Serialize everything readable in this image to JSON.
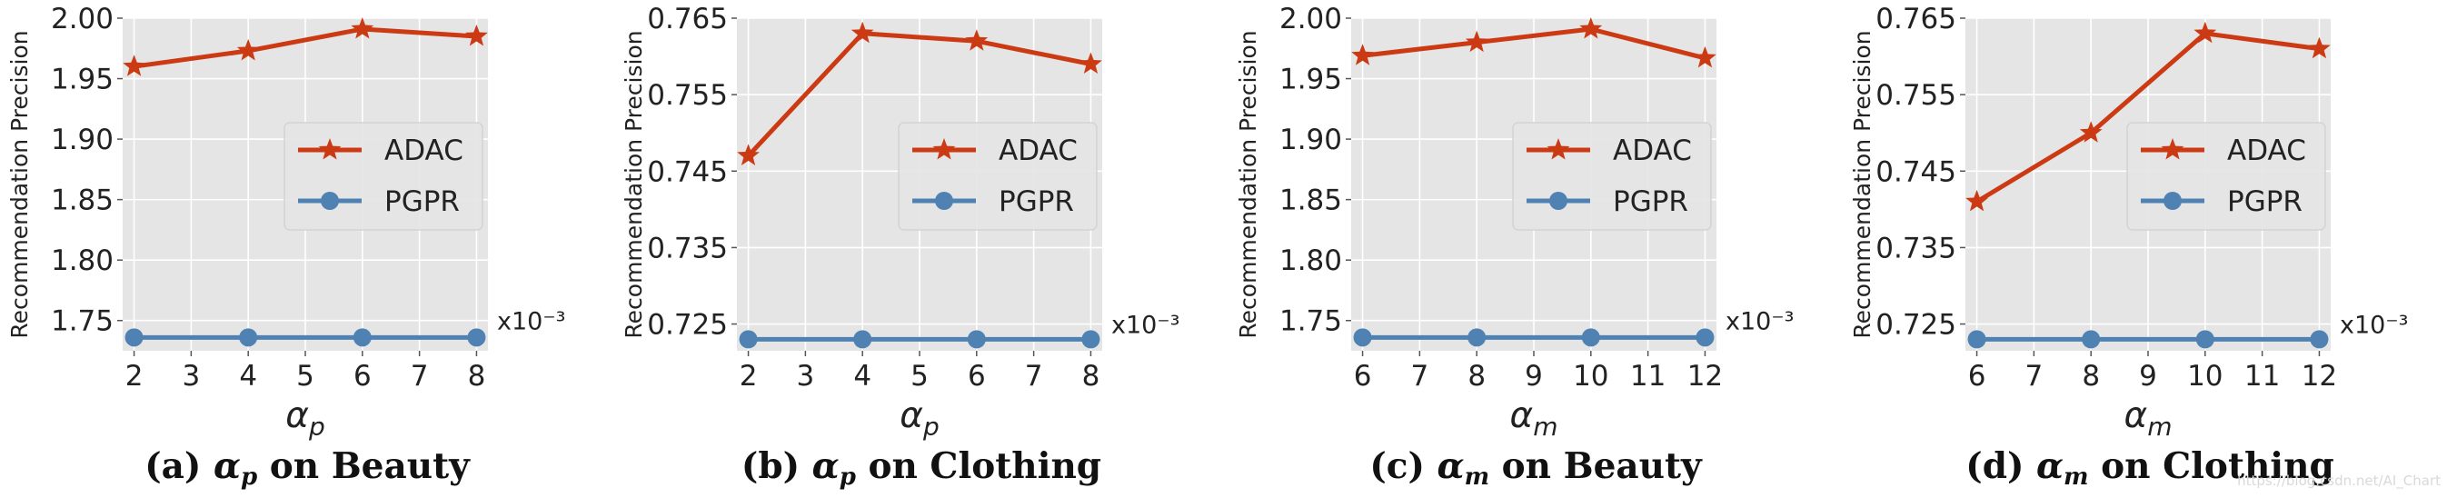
{
  "chart_data": [
    {
      "type": "line",
      "x": [
        2,
        4,
        6,
        8
      ],
      "xticks": [
        "2",
        "3",
        "4",
        "5",
        "6",
        "7",
        "8"
      ],
      "xlim": [
        1.8,
        8.2
      ],
      "ylim": [
        1.725,
        2.0
      ],
      "yticks": [
        "1.75",
        "1.80",
        "1.85",
        "1.90",
        "1.95",
        "2.00"
      ],
      "xlabel": "α",
      "xlabel_sub": "p",
      "ylabel": "Recommendation Precision",
      "exponent": "x10⁻³",
      "series": [
        {
          "name": "ADAC",
          "values": [
            1.96,
            1.973,
            1.991,
            1.985
          ],
          "color": "#cc3a14",
          "marker": "star"
        },
        {
          "name": "PGPR",
          "values": [
            1.736,
            1.736,
            1.736,
            1.736
          ],
          "color": "#4f82b3",
          "marker": "circle"
        }
      ],
      "legend": "center-right",
      "grid": true,
      "caption": {
        "prefix": "(a) ",
        "symbol": "α",
        "sub": "p",
        "suffix": " on Beauty"
      }
    },
    {
      "type": "line",
      "x": [
        2,
        4,
        6,
        8
      ],
      "xticks": [
        "2",
        "3",
        "4",
        "5",
        "6",
        "7",
        "8"
      ],
      "xlim": [
        1.8,
        8.2
      ],
      "ylim": [
        0.7215,
        0.765
      ],
      "yticks": [
        "0.725",
        "0.735",
        "0.745",
        "0.755",
        "0.765"
      ],
      "xlabel": "α",
      "xlabel_sub": "p",
      "ylabel": "Recommendation Precision",
      "exponent": "x10⁻³",
      "series": [
        {
          "name": "ADAC",
          "values": [
            0.747,
            0.763,
            0.762,
            0.759
          ],
          "color": "#cc3a14",
          "marker": "star"
        },
        {
          "name": "PGPR",
          "values": [
            0.723,
            0.723,
            0.723,
            0.723
          ],
          "color": "#4f82b3",
          "marker": "circle"
        }
      ],
      "legend": "center-right",
      "grid": true,
      "caption": {
        "prefix": "(b) ",
        "symbol": "α",
        "sub": "p",
        "suffix": " on Clothing"
      }
    },
    {
      "type": "line",
      "x": [
        6,
        8,
        10,
        12
      ],
      "xticks": [
        "6",
        "7",
        "8",
        "9",
        "10",
        "11",
        "12"
      ],
      "xlim": [
        5.8,
        12.2
      ],
      "ylim": [
        1.725,
        2.0
      ],
      "yticks": [
        "1.75",
        "1.80",
        "1.85",
        "1.90",
        "1.95",
        "2.00"
      ],
      "xlabel": "α",
      "xlabel_sub": "m",
      "ylabel": "Recommendation Precision",
      "exponent": "x10⁻³",
      "series": [
        {
          "name": "ADAC",
          "values": [
            1.969,
            1.98,
            1.991,
            1.967
          ],
          "color": "#cc3a14",
          "marker": "star"
        },
        {
          "name": "PGPR",
          "values": [
            1.736,
            1.736,
            1.736,
            1.736
          ],
          "color": "#4f82b3",
          "marker": "circle"
        }
      ],
      "legend": "center-right",
      "grid": true,
      "caption": {
        "prefix": "(c) ",
        "symbol": "α",
        "sub": "m",
        "suffix": " on Beauty"
      }
    },
    {
      "type": "line",
      "x": [
        6,
        8,
        10,
        12
      ],
      "xticks": [
        "6",
        "7",
        "8",
        "9",
        "10",
        "11",
        "12"
      ],
      "xlim": [
        5.8,
        12.2
      ],
      "ylim": [
        0.7215,
        0.765
      ],
      "yticks": [
        "0.725",
        "0.735",
        "0.745",
        "0.755",
        "0.765"
      ],
      "xlabel": "α",
      "xlabel_sub": "m",
      "ylabel": "Recommendation Precision",
      "exponent": "x10⁻³",
      "series": [
        {
          "name": "ADAC",
          "values": [
            0.741,
            0.75,
            0.763,
            0.761
          ],
          "color": "#cc3a14",
          "marker": "star"
        },
        {
          "name": "PGPR",
          "values": [
            0.723,
            0.723,
            0.723,
            0.723
          ],
          "color": "#4f82b3",
          "marker": "circle"
        }
      ],
      "legend": "center-right",
      "grid": true,
      "caption": {
        "prefix": "(d) ",
        "symbol": "α",
        "sub": "m",
        "suffix": " on Clothing"
      }
    }
  ],
  "watermark": "https://blog.csdn.net/AI_Chart"
}
